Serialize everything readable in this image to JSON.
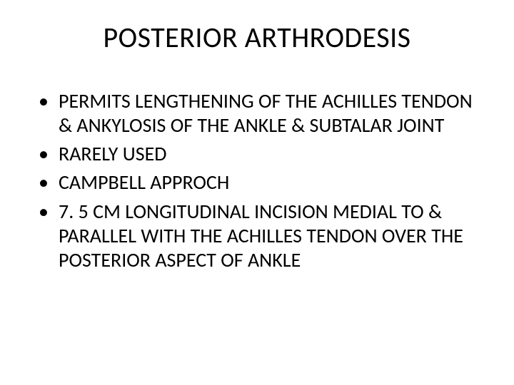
{
  "slide": {
    "title": "POSTERIOR ARTHRODESIS",
    "title_fontsize": 40,
    "title_color": "#000000",
    "bullets": [
      "PERMITS LENGTHENING OF THE ACHILLES TENDON & ANKYLOSIS OF THE ANKLE & SUBTALAR JOINT",
      "RARELY USED",
      "CAMPBELL APPROCH",
      "7. 5 CM LONGITUDINAL INCISION MEDIAL TO & PARALLEL WITH THE ACHILLES TENDON OVER THE POSTERIOR ASPECT OF ANKLE"
    ],
    "bullet_fontsize": 28,
    "bullet_line_height": 1.22,
    "bullet_color": "#000000",
    "background_color": "#ffffff"
  }
}
